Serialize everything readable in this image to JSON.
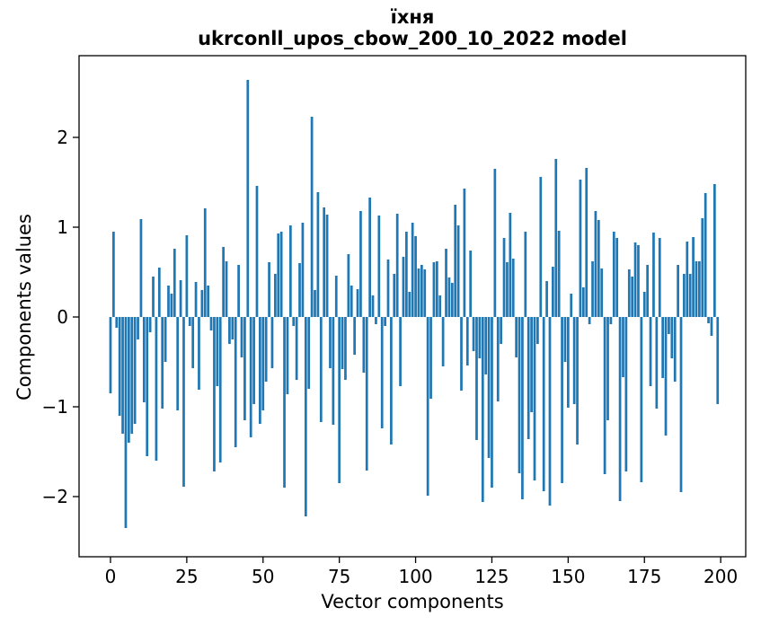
{
  "figure": {
    "title_lines": [
      "їхня",
      "ukrconll_upos_cbow_200_10_2022 model"
    ]
  },
  "chart_data": {
    "type": "bar",
    "title": "їхня",
    "subtitle": "ukrconll_upos_cbow_200_10_2022 model",
    "xlabel": "Vector components",
    "ylabel": "Components values",
    "bar_color": "#1f77b4",
    "spine_color": "#000000",
    "n_components": 200,
    "xlim": [
      -10.3,
      208.2
    ],
    "ylim": [
      -2.67,
      2.91
    ],
    "xticks": [
      0,
      25,
      50,
      75,
      100,
      125,
      150,
      175,
      200
    ],
    "yticks": [
      -2,
      -1,
      0,
      1,
      2
    ],
    "ytick_labels": [
      "−2",
      "−1",
      "0",
      "1",
      "2"
    ],
    "grid": false,
    "legend": false,
    "values": [
      -0.85,
      0.95,
      -0.12,
      -1.1,
      -1.3,
      -2.35,
      -1.4,
      -1.3,
      -1.19,
      -0.25,
      1.09,
      -0.95,
      -1.55,
      -0.17,
      0.45,
      -1.6,
      0.55,
      -1.02,
      -0.5,
      0.35,
      0.26,
      0.76,
      -1.04,
      0.41,
      -1.89,
      0.91,
      -0.1,
      -0.57,
      0.39,
      -0.81,
      0.3,
      1.21,
      0.35,
      -0.15,
      -1.72,
      -0.77,
      -1.62,
      0.78,
      0.62,
      -0.3,
      -0.25,
      -1.45,
      0.58,
      -0.45,
      -1.15,
      2.64,
      -1.34,
      -0.97,
      1.46,
      -1.19,
      -1.04,
      -0.72,
      0.61,
      -0.57,
      0.48,
      0.93,
      0.95,
      -1.9,
      -0.86,
      1.02,
      -0.1,
      -0.7,
      0.6,
      1.05,
      -2.22,
      -0.8,
      2.23,
      0.3,
      1.39,
      -1.17,
      1.22,
      1.14,
      -0.57,
      -1.2,
      0.46,
      -1.85,
      -0.58,
      -0.7,
      0.7,
      0.35,
      -0.42,
      0.31,
      1.18,
      -0.62,
      -1.71,
      1.33,
      0.24,
      -0.08,
      1.13,
      -1.24,
      -0.1,
      0.64,
      -1.42,
      0.48,
      1.15,
      -0.77,
      0.67,
      0.95,
      0.28,
      1.05,
      0.9,
      0.54,
      0.58,
      0.53,
      -1.99,
      -0.91,
      0.61,
      0.62,
      0.24,
      -0.55,
      0.76,
      0.44,
      0.38,
      1.25,
      1.02,
      -0.82,
      1.43,
      -0.54,
      0.74,
      -0.38,
      -1.37,
      -0.46,
      -2.06,
      -0.64,
      -1.57,
      -1.9,
      1.65,
      -0.94,
      -0.3,
      0.88,
      0.61,
      1.16,
      0.65,
      -0.45,
      -1.74,
      -2.03,
      0.95,
      -1.36,
      -1.06,
      -1.82,
      -0.3,
      1.56,
      -1.94,
      0.4,
      -2.1,
      0.56,
      1.76,
      0.96,
      -1.85,
      -0.5,
      -1.01,
      0.26,
      -0.97,
      -1.42,
      1.53,
      0.33,
      1.66,
      -0.08,
      0.62,
      1.18,
      1.08,
      0.54,
      -1.75,
      -1.15,
      -0.08,
      0.95,
      0.88,
      -2.05,
      -0.67,
      -1.72,
      0.53,
      0.45,
      0.83,
      0.8,
      -1.84,
      0.28,
      0.58,
      -0.77,
      0.94,
      -1.02,
      0.88,
      -0.68,
      -1.32,
      -0.19,
      -0.46,
      -0.72,
      0.58,
      -1.95,
      0.48,
      0.84,
      0.48,
      0.89,
      0.62,
      0.62,
      1.1,
      1.38,
      -0.07,
      -0.21,
      1.48,
      -0.97
    ]
  }
}
